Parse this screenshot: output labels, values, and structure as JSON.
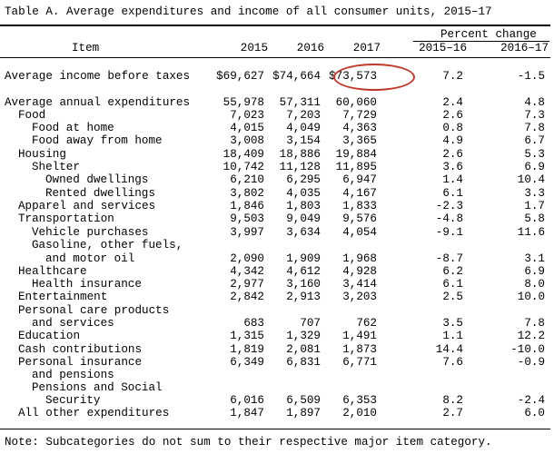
{
  "title": "Table A. Average expenditures and income of all consumer units, 2015–17",
  "headers": {
    "item": "Item",
    "y2015": "2015",
    "y2016": "2016",
    "y2017": "2017",
    "percent_change": "Percent change",
    "pc1516": "2015–16",
    "pc1617": "2016–17"
  },
  "income": {
    "label": "Average income before taxes",
    "y2015": "$69,627",
    "y2016": "$74,664",
    "y2017": "$73,573",
    "pc1516": "7.2",
    "pc1617": "-1.5"
  },
  "rows": [
    {
      "label": "Average annual expenditures",
      "y2015": "55,978",
      "y2016": "57,311",
      "y2017": "60,060",
      "pc1516": "2.4",
      "pc1617": "4.8"
    },
    {
      "label": "Food",
      "y2015": "7,023",
      "y2016": "7,203",
      "y2017": "7,729",
      "pc1516": "2.6",
      "pc1617": "7.3"
    },
    {
      "label": "Food at home",
      "y2015": "4,015",
      "y2016": "4,049",
      "y2017": "4,363",
      "pc1516": "0.8",
      "pc1617": "7.8"
    },
    {
      "label": "Food away from home",
      "y2015": "3,008",
      "y2016": "3,154",
      "y2017": "3,365",
      "pc1516": "4.9",
      "pc1617": "6.7"
    },
    {
      "label": "Housing",
      "y2015": "18,409",
      "y2016": "18,886",
      "y2017": "19,884",
      "pc1516": "2.6",
      "pc1617": "5.3"
    },
    {
      "label": "Shelter",
      "y2015": "10,742",
      "y2016": "11,128",
      "y2017": "11,895",
      "pc1516": "3.6",
      "pc1617": "6.9"
    },
    {
      "label": "Owned dwellings",
      "y2015": "6,210",
      "y2016": "6,295",
      "y2017": "6,947",
      "pc1516": "1.4",
      "pc1617": "10.4"
    },
    {
      "label": "Rented dwellings",
      "y2015": "3,802",
      "y2016": "4,035",
      "y2017": "4,167",
      "pc1516": "6.1",
      "pc1617": "3.3"
    },
    {
      "label": "Apparel and services",
      "y2015": "1,846",
      "y2016": "1,803",
      "y2017": "1,833",
      "pc1516": "-2.3",
      "pc1617": "1.7"
    },
    {
      "label": "Transportation",
      "y2015": "9,503",
      "y2016": "9,049",
      "y2017": "9,576",
      "pc1516": "-4.8",
      "pc1617": "5.8"
    },
    {
      "label": "Vehicle purchases",
      "y2015": "3,997",
      "y2016": "3,634",
      "y2017": "4,054",
      "pc1516": "-9.1",
      "pc1617": "11.6"
    },
    {
      "label": "Gasoline, other fuels,",
      "y2015": "",
      "y2016": "",
      "y2017": "",
      "pc1516": "",
      "pc1617": ""
    },
    {
      "label": "and motor oil",
      "y2015": "2,090",
      "y2016": "1,909",
      "y2017": "1,968",
      "pc1516": "-8.7",
      "pc1617": "3.1"
    },
    {
      "label": "Healthcare",
      "y2015": "4,342",
      "y2016": "4,612",
      "y2017": "4,928",
      "pc1516": "6.2",
      "pc1617": "6.9"
    },
    {
      "label": "Health insurance",
      "y2015": "2,977",
      "y2016": "3,160",
      "y2017": "3,414",
      "pc1516": "6.1",
      "pc1617": "8.0"
    },
    {
      "label": "Entertainment",
      "y2015": "2,842",
      "y2016": "2,913",
      "y2017": "3,203",
      "pc1516": "2.5",
      "pc1617": "10.0"
    },
    {
      "label": "Personal care products",
      "y2015": "",
      "y2016": "",
      "y2017": "",
      "pc1516": "",
      "pc1617": ""
    },
    {
      "label": "and services",
      "y2015": "683",
      "y2016": "707",
      "y2017": "762",
      "pc1516": "3.5",
      "pc1617": "7.8"
    },
    {
      "label": "Education",
      "y2015": "1,315",
      "y2016": "1,329",
      "y2017": "1,491",
      "pc1516": "1.1",
      "pc1617": "12.2"
    },
    {
      "label": "Cash contributions",
      "y2015": "1,819",
      "y2016": "2,081",
      "y2017": "1,873",
      "pc1516": "14.4",
      "pc1617": "-10.0"
    },
    {
      "label": "Personal insurance",
      "y2015": "6,349",
      "y2016": "6,831",
      "y2017": "6,771",
      "pc1516": "7.6",
      "pc1617": "-0.9"
    },
    {
      "label": "and pensions",
      "y2015": "",
      "y2016": "",
      "y2017": "",
      "pc1516": "",
      "pc1617": ""
    },
    {
      "label": "Pensions and Social",
      "y2015": "",
      "y2016": "",
      "y2017": "",
      "pc1516": "",
      "pc1617": ""
    },
    {
      "label": "Security",
      "y2015": "6,016",
      "y2016": "6,509",
      "y2017": "6,353",
      "pc1516": "8.2",
      "pc1617": "-2.4"
    },
    {
      "label": "All other expenditures",
      "y2015": "1,847",
      "y2016": "1,897",
      "y2017": "2,010",
      "pc1516": "2.7",
      "pc1617": "6.0"
    }
  ],
  "note": "Note: Subcategories do not sum to their respective major item category.",
  "highlight_color": "#c0392b"
}
